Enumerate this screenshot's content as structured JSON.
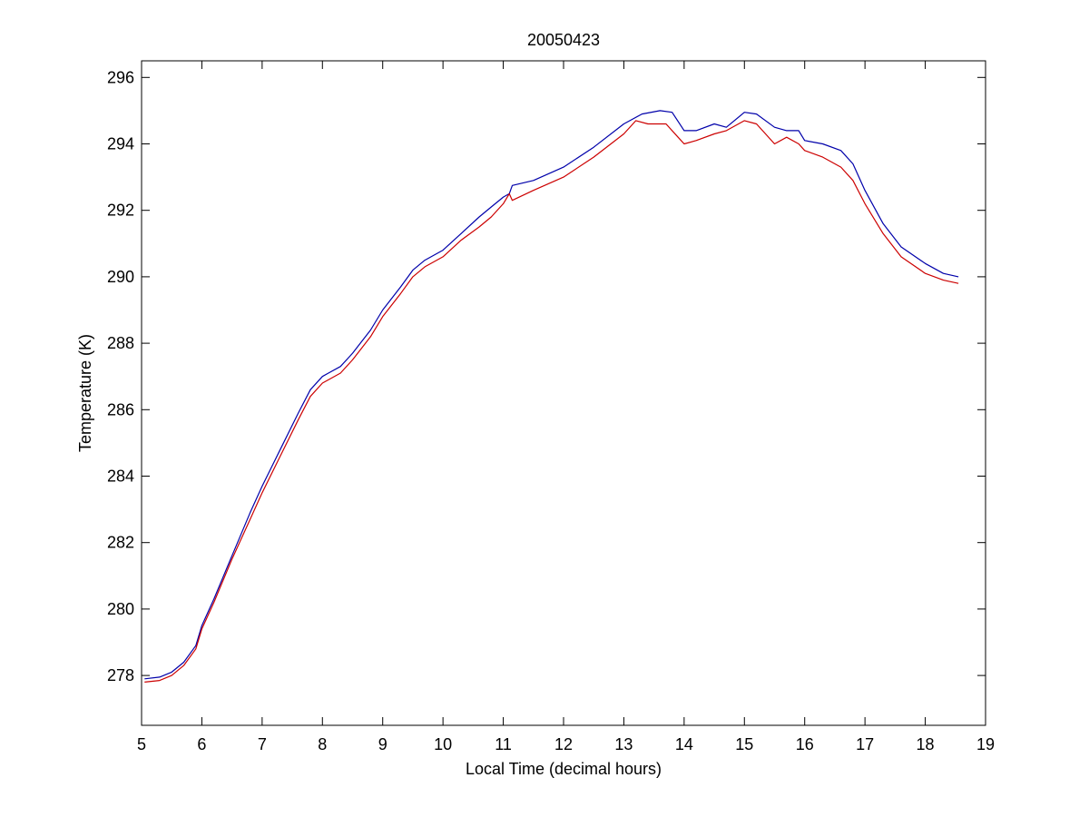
{
  "chart_data": {
    "type": "line",
    "title": "20050423",
    "xlabel": "Local Time (decimal hours)",
    "ylabel": "Temperature (K)",
    "xlim": [
      5,
      19
    ],
    "ylim": [
      276.5,
      296.5
    ],
    "x_ticks": [
      5,
      6,
      7,
      8,
      9,
      10,
      11,
      12,
      13,
      14,
      15,
      16,
      17,
      18,
      19
    ],
    "y_ticks": [
      278,
      280,
      282,
      284,
      286,
      288,
      290,
      292,
      294,
      296
    ],
    "grid": false,
    "legend": "none",
    "series": [
      {
        "color": "#0000aa",
        "x": [
          5.05,
          5.3,
          5.5,
          5.7,
          5.9,
          6.0,
          6.2,
          6.5,
          6.8,
          7.0,
          7.3,
          7.6,
          7.8,
          8.0,
          8.1,
          8.3,
          8.5,
          8.8,
          9.0,
          9.3,
          9.5,
          9.7,
          10.0,
          10.3,
          10.6,
          10.8,
          11.0,
          11.1,
          11.15,
          11.5,
          12.0,
          12.5,
          13.0,
          13.3,
          13.6,
          13.8,
          14.0,
          14.2,
          14.5,
          14.7,
          15.0,
          15.2,
          15.5,
          15.7,
          15.9,
          16.0,
          16.3,
          16.6,
          16.8,
          17.0,
          17.3,
          17.6,
          18.0,
          18.3,
          18.55
        ],
        "values": [
          277.9,
          277.95,
          278.1,
          278.4,
          278.9,
          279.5,
          280.3,
          281.6,
          282.9,
          283.7,
          284.8,
          285.9,
          286.6,
          287.0,
          287.1,
          287.3,
          287.7,
          288.4,
          289.0,
          289.7,
          290.2,
          290.5,
          290.8,
          291.3,
          291.8,
          292.1,
          292.4,
          292.5,
          292.75,
          292.9,
          293.3,
          293.9,
          294.6,
          294.9,
          295.0,
          294.95,
          294.4,
          294.4,
          294.6,
          294.5,
          294.95,
          294.9,
          294.5,
          294.4,
          294.4,
          294.1,
          294.0,
          293.8,
          293.4,
          292.6,
          291.6,
          290.9,
          290.4,
          290.1,
          290.0
        ]
      },
      {
        "color": "#cc0000",
        "x": [
          5.05,
          5.3,
          5.5,
          5.7,
          5.9,
          6.0,
          6.2,
          6.5,
          6.8,
          7.0,
          7.3,
          7.6,
          7.8,
          8.0,
          8.1,
          8.3,
          8.5,
          8.8,
          9.0,
          9.3,
          9.5,
          9.7,
          10.0,
          10.3,
          10.6,
          10.8,
          11.0,
          11.1,
          11.15,
          11.5,
          12.0,
          12.5,
          13.0,
          13.2,
          13.4,
          13.7,
          13.9,
          14.0,
          14.2,
          14.5,
          14.7,
          15.0,
          15.2,
          15.5,
          15.7,
          15.9,
          16.0,
          16.3,
          16.6,
          16.8,
          17.0,
          17.3,
          17.6,
          18.0,
          18.3,
          18.55
        ],
        "values": [
          277.8,
          277.85,
          278.0,
          278.3,
          278.8,
          279.4,
          280.2,
          281.5,
          282.7,
          283.5,
          284.6,
          285.7,
          286.4,
          286.8,
          286.9,
          287.1,
          287.5,
          288.2,
          288.8,
          289.5,
          290.0,
          290.3,
          290.6,
          291.1,
          291.5,
          291.8,
          292.2,
          292.5,
          292.3,
          292.6,
          293.0,
          293.6,
          294.3,
          294.7,
          294.6,
          294.6,
          294.2,
          294.0,
          294.1,
          294.3,
          294.4,
          294.7,
          294.6,
          294.0,
          294.2,
          294.0,
          293.8,
          293.6,
          293.3,
          292.9,
          292.2,
          291.3,
          290.6,
          290.1,
          289.9,
          289.8
        ]
      }
    ]
  }
}
